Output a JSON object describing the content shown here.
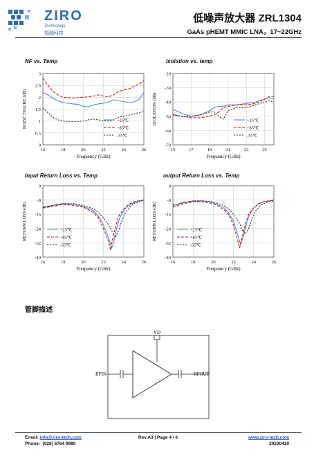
{
  "header": {
    "brand": "ZIRO",
    "brand_sub": "Technology",
    "brand_cn": "知融科技",
    "title": "低噪声放大器 ZRL1304",
    "subtitle": "GaAs pHEMT MMIC LNA，17~22GHz",
    "brand_color": "#2d6bb5"
  },
  "section_title": "管脚描述",
  "pin_diagram": {
    "vd": "VD",
    "rfin": "RFIN",
    "rfout": "RFOUT"
  },
  "footer": {
    "email_label": "Email:",
    "email": "info@ziro-tech.com",
    "phone_label": "Phone:",
    "phone": "(028) 6764 9989",
    "rev": "Rev.A3 | Page 4 / 6",
    "website": "www.ziro-tech.com",
    "date": "20230419"
  },
  "chart_data": [
    {
      "type": "line",
      "title": "NF vs. Temp",
      "xlabel": "Frequency (GHz)",
      "ylabel": "NOISE FIGURE (dB)",
      "xlim": [
        16,
        26
      ],
      "ylim": [
        0,
        3
      ],
      "xticks": [
        16,
        18,
        20,
        22,
        24,
        26
      ],
      "yticks": [
        0,
        0.5,
        1,
        1.5,
        2,
        2.5,
        3
      ],
      "ytick_labels": [
        "0",
        "0.5",
        "1",
        "1.5",
        "2",
        "2.5",
        "3"
      ],
      "legend": "bottom-right",
      "series": [
        {
          "name": "+25℃",
          "color": "#4f8fd0",
          "dash": "",
          "x": [
            16,
            16.5,
            17,
            17.5,
            18,
            18.5,
            19,
            19.5,
            20,
            20.5,
            21,
            21.5,
            22,
            22.5,
            23,
            23.5,
            24,
            24.5,
            25,
            25.5,
            26
          ],
          "y": [
            2.2,
            2.1,
            1.95,
            1.85,
            1.78,
            1.75,
            1.72,
            1.7,
            1.62,
            1.6,
            1.68,
            1.72,
            1.75,
            1.8,
            1.9,
            1.85,
            1.82,
            1.78,
            1.8,
            1.9,
            2.2
          ]
        },
        {
          "name": "+85℃",
          "color": "#cc1111",
          "dash": "4,2",
          "x": [
            16,
            16.5,
            17,
            17.5,
            18,
            18.5,
            19,
            19.5,
            20,
            20.5,
            21,
            21.5,
            22,
            22.5,
            23,
            23.5,
            24,
            24.5,
            25,
            25.5,
            26
          ],
          "y": [
            2.8,
            2.5,
            2.25,
            2.1,
            2.0,
            1.98,
            1.97,
            1.98,
            2.0,
            2.02,
            2.05,
            2.1,
            2.05,
            2.02,
            2.1,
            2.25,
            2.3,
            2.35,
            2.45,
            2.55,
            2.7
          ]
        },
        {
          "name": "-55℃",
          "color": "#222222",
          "dash": "2,2",
          "x": [
            16,
            16.5,
            17,
            17.5,
            18,
            18.5,
            19,
            19.5,
            20,
            20.5,
            21,
            21.5,
            22,
            22.5,
            23,
            23.5,
            24,
            24.5,
            25,
            25.5,
            26
          ],
          "y": [
            1.55,
            1.35,
            1.15,
            1.05,
            1.0,
            0.98,
            0.97,
            0.98,
            1.0,
            1.05,
            1.08,
            1.05,
            1.02,
            1.0,
            1.05,
            1.15,
            1.2,
            1.25,
            1.3,
            1.35,
            1.4
          ]
        }
      ]
    },
    {
      "type": "line",
      "title": "Isolation vs. temp",
      "xlabel": "Frequency (GHz)",
      "ylabel": "ISOLATION (dB)",
      "xlim": [
        15,
        26
      ],
      "ylim": [
        -70,
        -20
      ],
      "xticks": [
        15,
        17,
        19,
        21,
        23,
        25
      ],
      "yticks": [
        -70,
        -60,
        -50,
        -40,
        -30,
        -20
      ],
      "ytick_labels": [
        "-70",
        "-60",
        "-50",
        "-40",
        "-30",
        "-20"
      ],
      "legend": "bottom-right",
      "series": [
        {
          "name": "+25℃",
          "color": "#4f8fd0",
          "dash": "",
          "x": [
            15,
            16,
            17,
            18,
            19,
            19.5,
            20,
            20.5,
            21,
            22,
            23,
            24,
            25,
            25.5,
            26
          ],
          "y": [
            -45,
            -48,
            -50,
            -49,
            -46,
            -44,
            -43,
            -43,
            -42,
            -42,
            -41,
            -40,
            -38,
            -37,
            -38
          ]
        },
        {
          "name": "+85℃",
          "color": "#cc1111",
          "dash": "4,2",
          "x": [
            15,
            16,
            17,
            18,
            19,
            19.5,
            20,
            20.5,
            21,
            22,
            23,
            24,
            25,
            25.5,
            26
          ],
          "y": [
            -49,
            -50,
            -51,
            -51,
            -50,
            -49,
            -47,
            -44,
            -43,
            -42,
            -42,
            -41,
            -38,
            -36,
            -36
          ]
        },
        {
          "name": "-55℃",
          "color": "#222222",
          "dash": "2,2",
          "x": [
            15,
            16,
            17,
            18,
            19,
            19.5,
            20,
            20.5,
            21,
            22,
            23,
            24,
            25,
            25.5,
            26
          ],
          "y": [
            -49,
            -50,
            -50,
            -49,
            -47,
            -47,
            -50,
            -52,
            -46,
            -44,
            -44,
            -42,
            -40,
            -39,
            -40
          ]
        }
      ]
    },
    {
      "type": "line",
      "title": "Input Return Loss vs. Temp",
      "xlabel": "Frequency (GHz)",
      "ylabel": "RETURN LOSS (dB)",
      "xlim": [
        16,
        26
      ],
      "ylim": [
        -40,
        0
      ],
      "xticks": [
        16,
        18,
        20,
        22,
        24,
        26
      ],
      "yticks": [
        -40,
        -32,
        -24,
        -16,
        -8,
        0
      ],
      "ytick_labels": [
        "-40",
        "-32",
        "-24",
        "-16",
        "-8",
        "0"
      ],
      "legend": "bottom-left",
      "series": [
        {
          "name": "+25℃",
          "color": "#4f8fd0",
          "dash": "",
          "x": [
            16,
            17,
            18,
            19,
            20,
            21,
            21.5,
            22,
            22.5,
            22.8,
            23,
            23.3,
            23.6,
            24,
            24.5,
            25,
            25.5,
            26
          ],
          "y": [
            -12,
            -11,
            -10,
            -10.5,
            -11.5,
            -14,
            -17,
            -22,
            -29,
            -35,
            -32,
            -24,
            -18,
            -14,
            -11,
            -9.5,
            -8.5,
            -8
          ]
        },
        {
          "name": "+85℃",
          "color": "#cc1111",
          "dash": "4,2",
          "x": [
            16,
            17,
            18,
            19,
            20,
            21,
            21.5,
            22,
            22.5,
            22.7,
            22.9,
            23.2,
            23.5,
            24,
            24.5,
            25,
            25.5,
            26
          ],
          "y": [
            -12.5,
            -11.5,
            -10.5,
            -11,
            -12,
            -15,
            -18,
            -24,
            -31,
            -36,
            -30,
            -23,
            -17,
            -13,
            -10.5,
            -9,
            -8.5,
            -8
          ]
        },
        {
          "name": "-55℃",
          "color": "#222222",
          "dash": "2,2",
          "x": [
            16,
            17,
            18,
            19,
            20,
            21,
            21.5,
            22,
            22.5,
            23,
            23.2,
            23.5,
            23.8,
            24.2,
            24.6,
            25,
            25.5,
            26
          ],
          "y": [
            -12,
            -11,
            -10,
            -10,
            -11,
            -13,
            -15,
            -18,
            -22,
            -27,
            -29,
            -25,
            -20,
            -15,
            -12,
            -10,
            -9,
            -8
          ]
        }
      ]
    },
    {
      "type": "line",
      "title": "output Return Loss vs. Temp",
      "xlabel": "Frequency (GHz)",
      "ylabel": "RETURN LOSS (dB)",
      "xlim": [
        16,
        26
      ],
      "ylim": [
        -40,
        0
      ],
      "xticks": [
        16,
        18,
        20,
        22,
        24,
        26
      ],
      "yticks": [
        -40,
        -32,
        -24,
        -16,
        -8,
        0
      ],
      "ytick_labels": [
        "-40",
        "-32",
        "-24",
        "-16",
        "-8",
        "0"
      ],
      "legend": "bottom-left",
      "series": [
        {
          "name": "+25℃",
          "color": "#4f8fd0",
          "dash": "",
          "x": [
            16,
            17,
            18,
            19,
            20,
            21,
            21.5,
            22,
            22.4,
            22.7,
            23,
            23.3,
            23.6,
            24,
            24.5,
            25,
            25.5,
            26
          ],
          "y": [
            -11,
            -9.5,
            -8.5,
            -8.5,
            -9.5,
            -12,
            -15,
            -20,
            -27,
            -33,
            -28,
            -21,
            -16,
            -12.5,
            -10,
            -9,
            -8.5,
            -8
          ]
        },
        {
          "name": "+85℃",
          "color": "#cc1111",
          "dash": "4,2",
          "x": [
            16,
            17,
            18,
            19,
            20,
            21,
            21.5,
            22,
            22.4,
            22.6,
            22.9,
            23.2,
            23.5,
            24,
            24.5,
            25,
            25.5,
            26
          ],
          "y": [
            -12,
            -10,
            -9,
            -9,
            -10,
            -13,
            -16,
            -22,
            -30,
            -35,
            -28,
            -21,
            -16,
            -12.5,
            -10,
            -9,
            -8.5,
            -8
          ]
        },
        {
          "name": "-55℃",
          "color": "#222222",
          "dash": "2,2",
          "x": [
            16,
            17,
            18,
            19,
            20,
            21,
            21.5,
            22,
            22.5,
            22.9,
            23.2,
            23.5,
            23.8,
            24.2,
            24.6,
            25,
            25.5,
            26
          ],
          "y": [
            -11,
            -9.5,
            -8.5,
            -8.5,
            -9,
            -11,
            -13,
            -16,
            -20,
            -25,
            -27,
            -24,
            -19,
            -14,
            -11.5,
            -10,
            -9,
            -8.5
          ]
        }
      ]
    }
  ]
}
